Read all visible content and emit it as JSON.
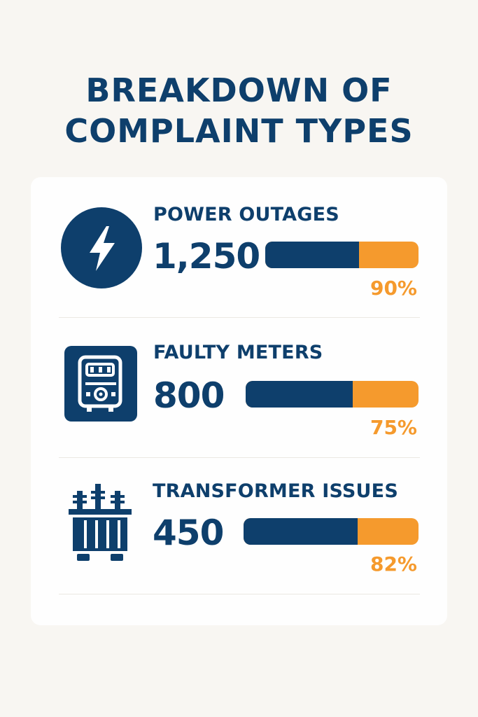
{
  "title_lines": [
    "BREAKDOWN OF",
    "COMPLAINT TYPES"
  ],
  "colors": {
    "primary": "#0e3f6c",
    "accent": "#f59a2d",
    "background": "#f8f6f2",
    "card": "#fefefe"
  },
  "items": [
    {
      "label": "POWER OUTAGES",
      "count": "1,250",
      "percent": "90%",
      "bar_primary_fraction": 0.61,
      "icon": "lightning-bolt-icon"
    },
    {
      "label": "FAULTY METERS",
      "count": "800",
      "percent": "75%",
      "bar_primary_fraction": 0.62,
      "icon": "electric-meter-icon"
    },
    {
      "label": "TRANSFORMER ISSUES",
      "count": "450",
      "percent": "82%",
      "bar_primary_fraction": 0.65,
      "icon": "transformer-icon"
    }
  ]
}
